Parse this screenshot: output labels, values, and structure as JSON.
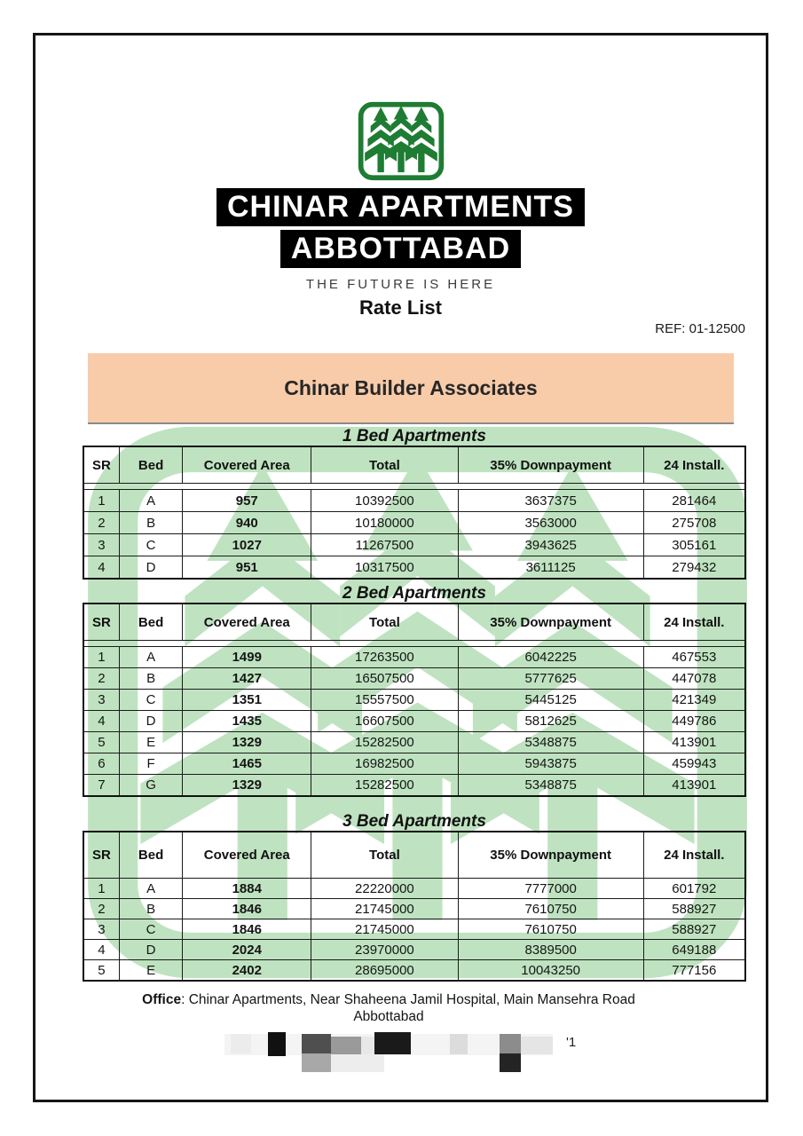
{
  "header": {
    "brand_line1": "CHINAR APARTMENTS",
    "brand_line2": "ABBOTTABAD",
    "tagline": "THE FUTURE IS HERE",
    "doc_title": "Rate List",
    "ref": "REF: 01-12500",
    "banner_title": "Chinar Builder Associates"
  },
  "colors": {
    "logo_green": "#1e7c33",
    "watermark_green": "#bfe3c0",
    "banner_bg": "#f8cba9",
    "bar_bg": "#000000",
    "bar_text": "#ffffff"
  },
  "tables": [
    {
      "title": "1 Bed Apartments",
      "columns": [
        "SR",
        "Bed",
        "Covered Area",
        "Total",
        "35% Downpayment",
        "24 Install."
      ],
      "rows": [
        [
          "1",
          "A",
          "957",
          "10392500",
          "3637375",
          "281464"
        ],
        [
          "2",
          "B",
          "940",
          "10180000",
          "3563000",
          "275708"
        ],
        [
          "3",
          "C",
          "1027",
          "11267500",
          "3943625",
          "305161"
        ],
        [
          "4",
          "D",
          "951",
          "10317500",
          "3611125",
          "279432"
        ]
      ]
    },
    {
      "title": "2 Bed Apartments",
      "columns": [
        "SR",
        "Bed",
        "Covered Area",
        "Total",
        "35% Downpayment",
        "24 Install."
      ],
      "rows": [
        [
          "1",
          "A",
          "1499",
          "17263500",
          "6042225",
          "467553"
        ],
        [
          "2",
          "B",
          "1427",
          "16507500",
          "5777625",
          "447078"
        ],
        [
          "3",
          "C",
          "1351",
          "15557500",
          "5445125",
          "421349"
        ],
        [
          "4",
          "D",
          "1435",
          "16607500",
          "5812625",
          "449786"
        ],
        [
          "5",
          "E",
          "1329",
          "15282500",
          "5348875",
          "413901"
        ],
        [
          "6",
          "F",
          "1465",
          "16982500",
          "5943875",
          "459943"
        ],
        [
          "7",
          "G",
          "1329",
          "15282500",
          "5348875",
          "413901"
        ]
      ]
    },
    {
      "title": "3 Bed Apartments",
      "columns": [
        "SR",
        "Bed",
        "Covered Area",
        "Total",
        "35% Downpayment",
        "24 Install."
      ],
      "rows": [
        [
          "1",
          "A",
          "1884",
          "22220000",
          "7777000",
          "601792"
        ],
        [
          "2",
          "B",
          "1846",
          "21745000",
          "7610750",
          "588927"
        ],
        [
          "3",
          "C",
          "1846",
          "21745000",
          "7610750",
          "588927"
        ],
        [
          "4",
          "D",
          "2024",
          "23970000",
          "8389500",
          "649188"
        ],
        [
          "5",
          "E",
          "2402",
          "28695000",
          "10043250",
          "777156"
        ]
      ]
    }
  ],
  "footer": {
    "office_label": "Office",
    "office_address": ": Chinar Apartments, Near Shaheena Jamil Hospital, Main Mansehra Road",
    "office_city": "Abbottabad",
    "partial_text": "'1"
  }
}
